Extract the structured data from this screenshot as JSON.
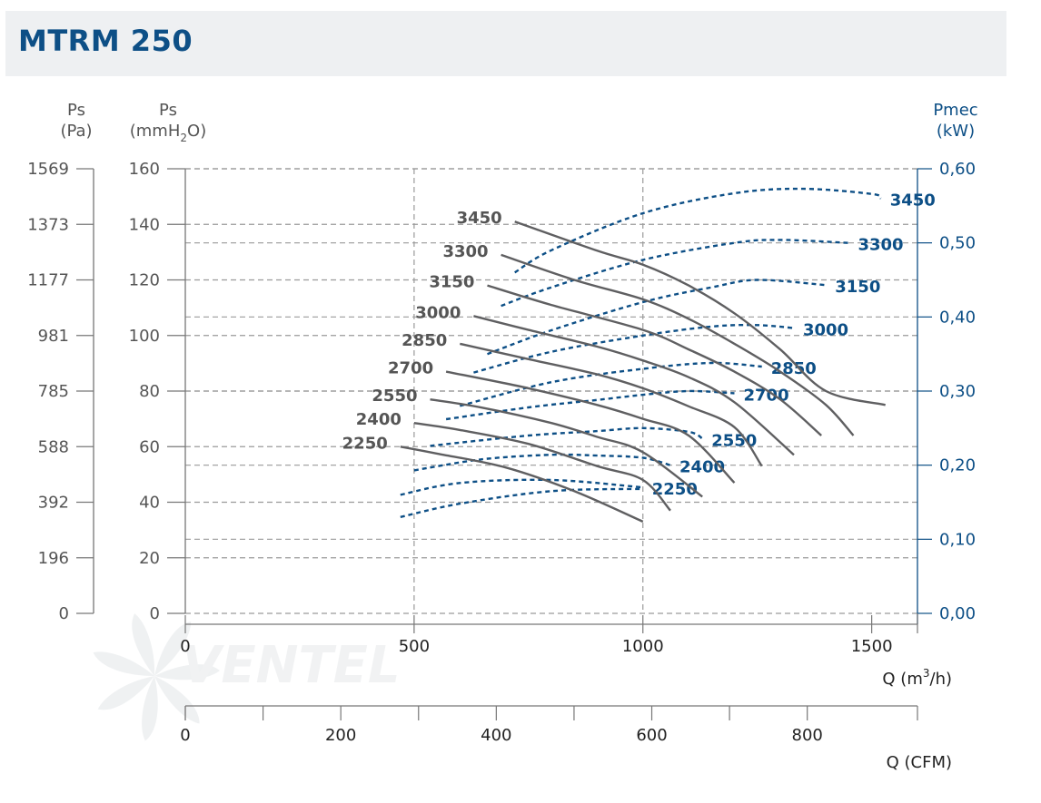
{
  "title": "MTRM 250",
  "watermark": "VENTEL",
  "colors": {
    "pressure_curve": "#5f5f61",
    "power_curve": "#0d4f86",
    "grid": "#9a9a9a",
    "right_axis": "#0d4f86",
    "title": "#0d4f86",
    "title_bar": "#eef0f2"
  },
  "axes": {
    "left_pa": {
      "header": "Ps",
      "unit": "(Pa)",
      "ticks": [
        "1569",
        "1373",
        "1177",
        "981",
        "785",
        "588",
        "392",
        "196",
        "0"
      ]
    },
    "left_mm": {
      "header": "Ps",
      "unit_base": "(mmH",
      "unit_sub": "2",
      "unit_end": "O)",
      "ticks": [
        160,
        140,
        120,
        100,
        80,
        60,
        40,
        20,
        0
      ]
    },
    "right_kw": {
      "header": "Pmec",
      "unit": "(kW)",
      "ticks": [
        "0,60",
        "0,50",
        "0,40",
        "0,30",
        "0,20",
        "0,10",
        "0,00"
      ]
    },
    "x_m3h": {
      "label_base": "Q (m",
      "label_sup": "3",
      "label_end": "/h)",
      "ticks": [
        0,
        500,
        1000,
        1500
      ]
    },
    "x_cfm": {
      "label": "Q (CFM)",
      "ticks": [
        0,
        200,
        400,
        600,
        800
      ]
    }
  },
  "chart_data": {
    "type": "line",
    "title": "MTRM 250",
    "xlabel": "Q (m3/h)",
    "ylabel": "Ps (mmH2O)",
    "y2label": "Pmec (kW)",
    "xlim": [
      0,
      1600
    ],
    "ylim": [
      0,
      160
    ],
    "y2lim": [
      0,
      0.6
    ],
    "grid": true,
    "pressure_series": [
      {
        "name": "3450",
        "points": [
          [
            720,
            141
          ],
          [
            900,
            130.5
          ],
          [
            1000,
            125.5
          ],
          [
            1100,
            118
          ],
          [
            1200,
            108
          ],
          [
            1300,
            95
          ],
          [
            1400,
            80
          ],
          [
            1530,
            75
          ]
        ]
      },
      {
        "name": "3300",
        "points": [
          [
            690,
            129
          ],
          [
            850,
            120
          ],
          [
            1000,
            113
          ],
          [
            1100,
            106
          ],
          [
            1200,
            97
          ],
          [
            1300,
            87
          ],
          [
            1400,
            75
          ],
          [
            1460,
            64
          ]
        ]
      },
      {
        "name": "3150",
        "points": [
          [
            660,
            118
          ],
          [
            800,
            111
          ],
          [
            1000,
            102
          ],
          [
            1100,
            95
          ],
          [
            1200,
            87
          ],
          [
            1300,
            77
          ],
          [
            1390,
            64
          ]
        ]
      },
      {
        "name": "3000",
        "points": [
          [
            630,
            107
          ],
          [
            750,
            102
          ],
          [
            900,
            96
          ],
          [
            1000,
            91
          ],
          [
            1100,
            85
          ],
          [
            1200,
            76
          ],
          [
            1330,
            57
          ]
        ]
      },
      {
        "name": "2850",
        "points": [
          [
            600,
            97
          ],
          [
            750,
            91.5
          ],
          [
            900,
            86
          ],
          [
            1000,
            81
          ],
          [
            1100,
            74.5
          ],
          [
            1200,
            67
          ],
          [
            1260,
            53
          ]
        ]
      },
      {
        "name": "2700",
        "points": [
          [
            570,
            87
          ],
          [
            750,
            81
          ],
          [
            900,
            75
          ],
          [
            1000,
            70
          ],
          [
            1100,
            64
          ],
          [
            1200,
            47
          ]
        ]
      },
      {
        "name": "2550",
        "points": [
          [
            535,
            77
          ],
          [
            650,
            74
          ],
          [
            800,
            68.5
          ],
          [
            900,
            63.5
          ],
          [
            1000,
            58
          ],
          [
            1130,
            42
          ]
        ]
      },
      {
        "name": "2400",
        "points": [
          [
            500,
            68.5
          ],
          [
            600,
            66
          ],
          [
            750,
            61
          ],
          [
            900,
            53
          ],
          [
            1000,
            48
          ],
          [
            1060,
            37
          ]
        ]
      },
      {
        "name": "2250",
        "points": [
          [
            470,
            60
          ],
          [
            550,
            57.5
          ],
          [
            700,
            52.5
          ],
          [
            850,
            44
          ],
          [
            1000,
            33
          ]
        ]
      }
    ],
    "power_series": [
      {
        "name": "3450",
        "points": [
          [
            720,
            0.46
          ],
          [
            800,
            0.49
          ],
          [
            1000,
            0.54
          ],
          [
            1200,
            0.567
          ],
          [
            1350,
            0.573
          ],
          [
            1500,
            0.566
          ],
          [
            1520,
            0.56
          ]
        ]
      },
      {
        "name": "3300",
        "points": [
          [
            690,
            0.415
          ],
          [
            800,
            0.44
          ],
          [
            1000,
            0.477
          ],
          [
            1200,
            0.5
          ],
          [
            1300,
            0.504
          ],
          [
            1450,
            0.5
          ]
        ]
      },
      {
        "name": "3150",
        "points": [
          [
            660,
            0.35
          ],
          [
            800,
            0.382
          ],
          [
            1000,
            0.42
          ],
          [
            1150,
            0.44
          ],
          [
            1250,
            0.45
          ],
          [
            1400,
            0.443
          ]
        ]
      },
      {
        "name": "3000",
        "points": [
          [
            630,
            0.325
          ],
          [
            800,
            0.353
          ],
          [
            1000,
            0.375
          ],
          [
            1150,
            0.387
          ],
          [
            1250,
            0.389
          ],
          [
            1330,
            0.385
          ]
        ]
      },
      {
        "name": "2850",
        "points": [
          [
            600,
            0.28
          ],
          [
            800,
            0.312
          ],
          [
            1000,
            0.33
          ],
          [
            1150,
            0.338
          ],
          [
            1260,
            0.333
          ]
        ]
      },
      {
        "name": "2700",
        "points": [
          [
            570,
            0.262
          ],
          [
            750,
            0.278
          ],
          [
            900,
            0.288
          ],
          [
            1000,
            0.295
          ],
          [
            1100,
            0.3
          ],
          [
            1200,
            0.297
          ]
        ]
      },
      {
        "name": "2550",
        "points": [
          [
            535,
            0.226
          ],
          [
            750,
            0.24
          ],
          [
            900,
            0.246
          ],
          [
            1000,
            0.25
          ],
          [
            1100,
            0.245
          ],
          [
            1130,
            0.236
          ]
        ]
      },
      {
        "name": "2400",
        "points": [
          [
            500,
            0.193
          ],
          [
            650,
            0.208
          ],
          [
            800,
            0.214
          ],
          [
            900,
            0.213
          ],
          [
            1000,
            0.21
          ],
          [
            1060,
            0.2
          ]
        ]
      },
      {
        "name": "2250",
        "points": [
          [
            470,
            0.16
          ],
          [
            600,
            0.176
          ],
          [
            800,
            0.18
          ],
          [
            1000,
            0.17
          ]
        ]
      },
      {
        "name": "",
        "points": [
          [
            470,
            0.13
          ],
          [
            600,
            0.148
          ],
          [
            800,
            0.165
          ],
          [
            1000,
            0.168
          ]
        ]
      }
    ]
  }
}
